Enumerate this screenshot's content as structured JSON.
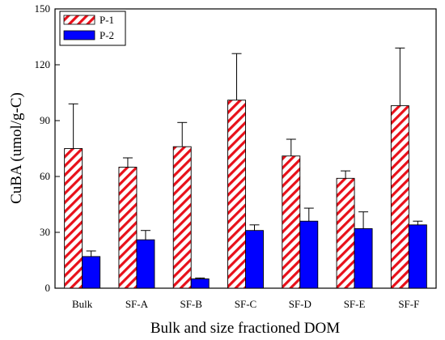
{
  "chart_data": {
    "type": "bar",
    "xlabel": "Bulk and size fractioned DOM",
    "ylabel": "CuBA (umol/g-C)",
    "ylim": [
      0,
      150
    ],
    "yticks": [
      0,
      30,
      60,
      90,
      120,
      150
    ],
    "categories": [
      "Bulk",
      "SF-A",
      "SF-B",
      "SF-C",
      "SF-D",
      "SF-E",
      "SF-F"
    ],
    "series": [
      {
        "name": "P-1",
        "fill": "red-diagonal-hatch",
        "color": "#e8101a",
        "values": [
          75,
          65,
          76,
          101,
          71,
          59,
          98
        ],
        "error": [
          24,
          5,
          13,
          25,
          9,
          4,
          31
        ]
      },
      {
        "name": "P-2",
        "fill": "solid",
        "color": "#0000ff",
        "values": [
          17,
          26,
          5,
          31,
          36,
          32,
          34
        ],
        "error": [
          3,
          5,
          0.5,
          3,
          7,
          9,
          2
        ]
      }
    ],
    "legend_position": "top-left",
    "grid": false
  }
}
